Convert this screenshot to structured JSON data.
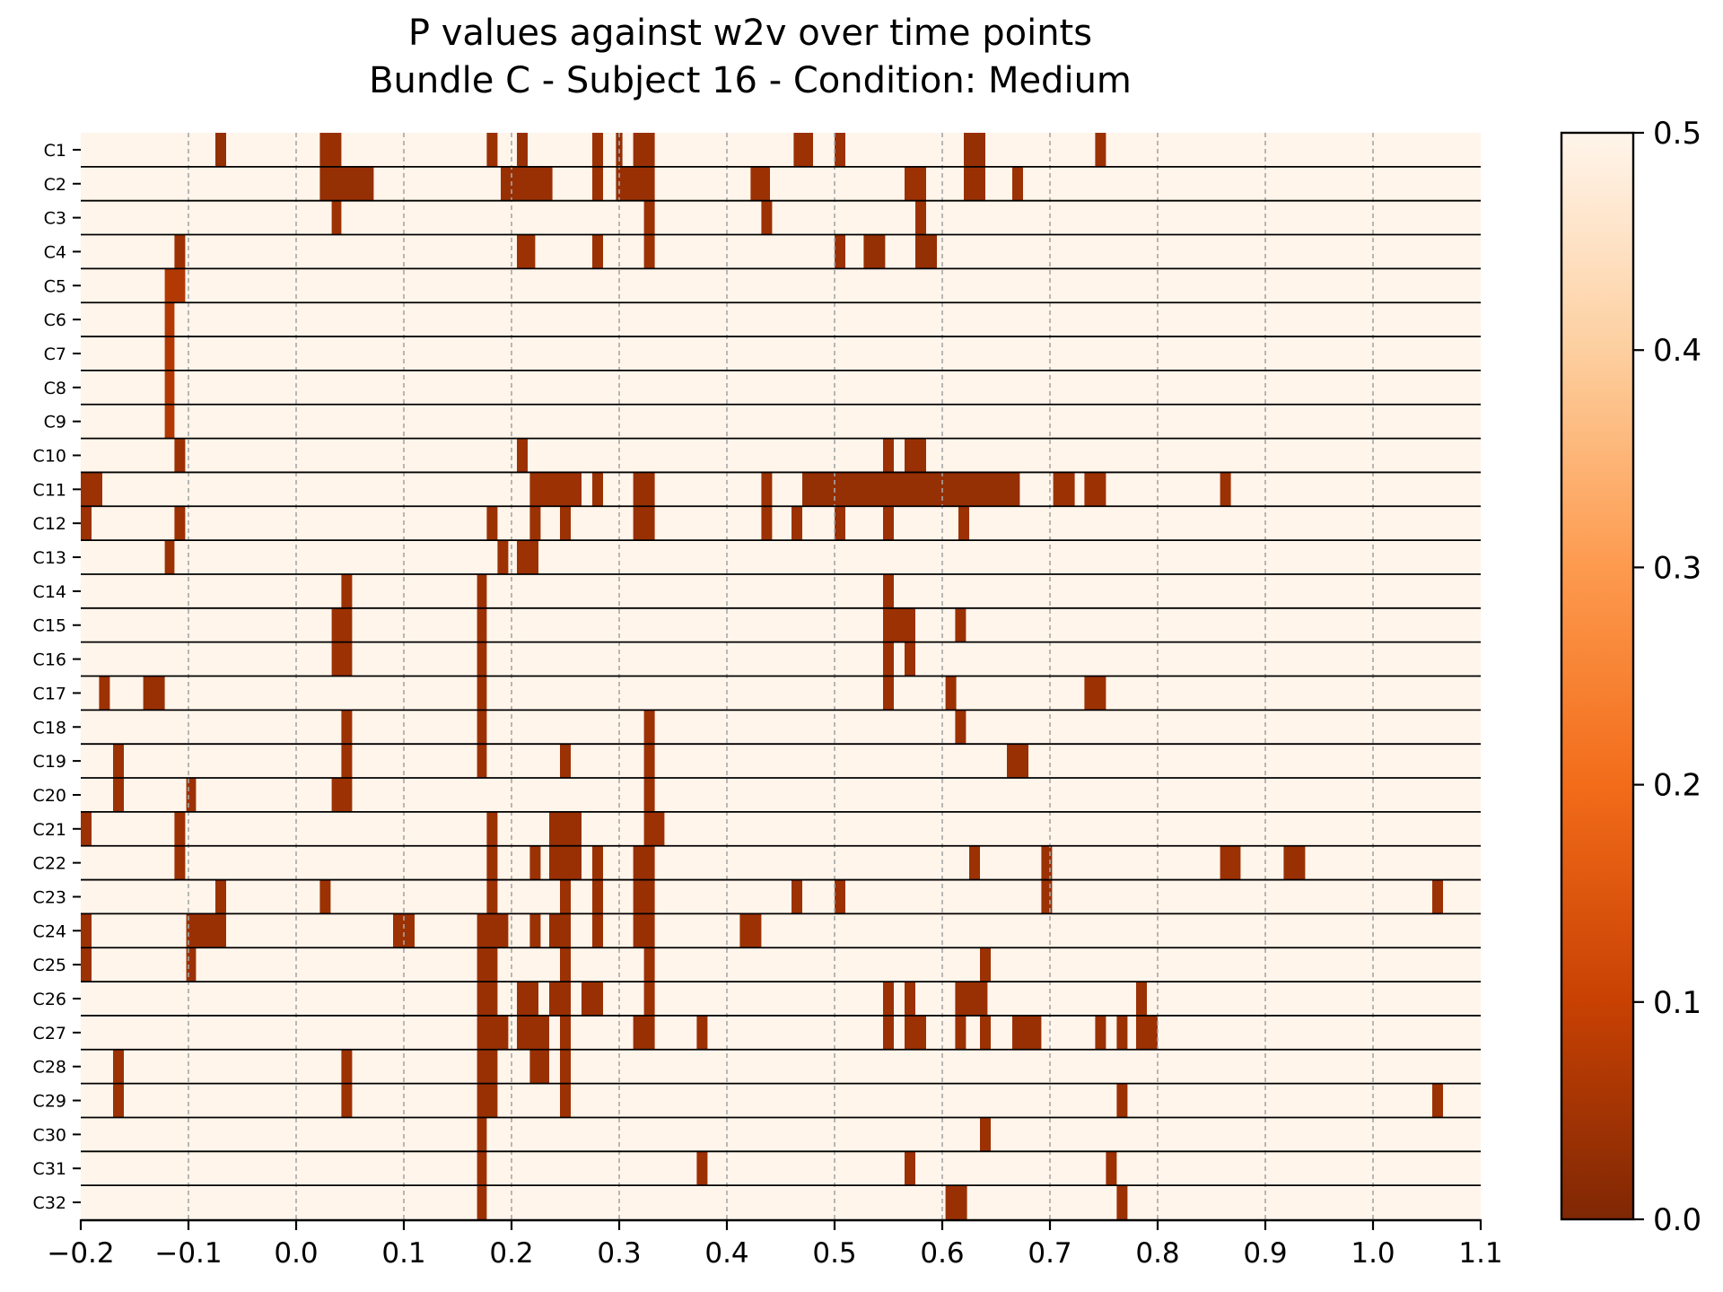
{
  "chart_data": {
    "type": "heatmap",
    "title_lines": [
      "P values against w2v over time points",
      "Bundle C - Subject 16 - Condition: Medium"
    ],
    "xlim": [
      -0.2,
      1.1
    ],
    "xticks": [
      -0.2,
      -0.1,
      0.0,
      0.1,
      0.2,
      0.3,
      0.4,
      0.5,
      0.6,
      0.7,
      0.8,
      0.9,
      1.0,
      1.1
    ],
    "xtick_labels": [
      "−0.2",
      "−0.1",
      "0.0",
      "0.1",
      "0.2",
      "0.3",
      "0.4",
      "0.5",
      "0.6",
      "0.7",
      "0.8",
      "0.9",
      "1.0",
      "1.1"
    ],
    "rows": [
      "C1",
      "C2",
      "C3",
      "C4",
      "C5",
      "C6",
      "C7",
      "C8",
      "C9",
      "C10",
      "C11",
      "C12",
      "C13",
      "C14",
      "C15",
      "C16",
      "C17",
      "C18",
      "C19",
      "C20",
      "C21",
      "C22",
      "C23",
      "C24",
      "C25",
      "C26",
      "C27",
      "C28",
      "C29",
      "C30",
      "C31",
      "C32"
    ],
    "background_p": 0.5,
    "grid": "vertical dashed at x ticks",
    "colormap": "Oranges reversed",
    "colorbar": {
      "range": [
        0.0,
        0.5
      ],
      "ticks": [
        0.0,
        0.1,
        0.2,
        0.3,
        0.4,
        0.5
      ],
      "tick_labels": [
        "0.0",
        "0.1",
        "0.2",
        "0.3",
        "0.4",
        "0.5"
      ],
      "stops": [
        [
          "0.0",
          "#7f2704"
        ],
        [
          "0.1",
          "#c84103"
        ],
        [
          "0.2",
          "#f26c1a"
        ],
        [
          "0.3",
          "#fd9a4e"
        ],
        [
          "0.4",
          "#fdcf9f"
        ],
        [
          "0.5",
          "#fff5eb"
        ]
      ]
    },
    "significant_segments": {
      "C1": [
        [
          -0.075,
          -0.065,
          0.03
        ],
        [
          0.022,
          0.042,
          0.035
        ],
        [
          0.177,
          0.187,
          0.04
        ],
        [
          0.205,
          0.215,
          0.035
        ],
        [
          0.275,
          0.285,
          0.04
        ],
        [
          0.297,
          0.303,
          0.03
        ],
        [
          0.313,
          0.333,
          0.035
        ],
        [
          0.462,
          0.48,
          0.04
        ],
        [
          0.5,
          0.51,
          0.04
        ],
        [
          0.62,
          0.64,
          0.03
        ],
        [
          0.742,
          0.752,
          0.04
        ]
      ],
      "C2": [
        [
          0.022,
          0.072,
          0.03
        ],
        [
          0.19,
          0.238,
          0.035
        ],
        [
          0.275,
          0.285,
          0.04
        ],
        [
          0.297,
          0.333,
          0.035
        ],
        [
          0.422,
          0.44,
          0.04
        ],
        [
          0.565,
          0.585,
          0.04
        ],
        [
          0.62,
          0.64,
          0.035
        ],
        [
          0.665,
          0.675,
          0.04
        ]
      ],
      "C3": [
        [
          0.033,
          0.042,
          0.04
        ],
        [
          0.323,
          0.333,
          0.04
        ],
        [
          0.432,
          0.442,
          0.04
        ],
        [
          0.575,
          0.585,
          0.04
        ]
      ],
      "C4": [
        [
          -0.113,
          -0.103,
          0.04
        ],
        [
          0.205,
          0.222,
          0.04
        ],
        [
          0.275,
          0.285,
          0.04
        ],
        [
          0.323,
          0.333,
          0.04
        ],
        [
          0.5,
          0.51,
          0.04
        ],
        [
          0.527,
          0.547,
          0.03
        ],
        [
          0.575,
          0.595,
          0.03
        ]
      ],
      "C5": [
        [
          -0.122,
          -0.103,
          0.07
        ]
      ],
      "C6": [
        [
          -0.122,
          -0.113,
          0.07
        ]
      ],
      "C7": [
        [
          -0.122,
          -0.113,
          0.07
        ]
      ],
      "C8": [
        [
          -0.122,
          -0.113,
          0.07
        ]
      ],
      "C9": [
        [
          -0.122,
          -0.113,
          0.07
        ]
      ],
      "C10": [
        [
          -0.113,
          -0.103,
          0.04
        ],
        [
          0.205,
          0.215,
          0.04
        ],
        [
          0.545,
          0.555,
          0.04
        ],
        [
          0.565,
          0.585,
          0.035
        ]
      ],
      "C11": [
        [
          -0.2,
          -0.18,
          0.04
        ],
        [
          0.217,
          0.265,
          0.04
        ],
        [
          0.275,
          0.285,
          0.04
        ],
        [
          0.313,
          0.333,
          0.035
        ],
        [
          0.432,
          0.442,
          0.04
        ],
        [
          0.47,
          0.672,
          0.03
        ],
        [
          0.703,
          0.723,
          0.04
        ],
        [
          0.732,
          0.752,
          0.04
        ],
        [
          0.858,
          0.868,
          0.04
        ]
      ],
      "C12": [
        [
          -0.2,
          -0.19,
          0.04
        ],
        [
          -0.113,
          -0.103,
          0.04
        ],
        [
          0.177,
          0.187,
          0.04
        ],
        [
          0.217,
          0.227,
          0.04
        ],
        [
          0.245,
          0.255,
          0.04
        ],
        [
          0.313,
          0.333,
          0.035
        ],
        [
          0.432,
          0.442,
          0.04
        ],
        [
          0.46,
          0.47,
          0.04
        ],
        [
          0.5,
          0.51,
          0.04
        ],
        [
          0.545,
          0.555,
          0.04
        ],
        [
          0.615,
          0.625,
          0.04
        ]
      ],
      "C13": [
        [
          -0.122,
          -0.113,
          0.04
        ],
        [
          0.187,
          0.197,
          0.04
        ],
        [
          0.205,
          0.225,
          0.04
        ]
      ],
      "C14": [
        [
          0.042,
          0.052,
          0.04
        ],
        [
          0.168,
          0.177,
          0.04
        ],
        [
          0.545,
          0.555,
          0.04
        ]
      ],
      "C15": [
        [
          0.033,
          0.052,
          0.04
        ],
        [
          0.168,
          0.177,
          0.04
        ],
        [
          0.545,
          0.575,
          0.04
        ],
        [
          0.612,
          0.622,
          0.04
        ]
      ],
      "C16": [
        [
          0.033,
          0.052,
          0.04
        ],
        [
          0.168,
          0.177,
          0.04
        ],
        [
          0.545,
          0.555,
          0.04
        ],
        [
          0.565,
          0.575,
          0.04
        ]
      ],
      "C17": [
        [
          -0.183,
          -0.173,
          0.04
        ],
        [
          -0.142,
          -0.122,
          0.035
        ],
        [
          0.168,
          0.177,
          0.04
        ],
        [
          0.545,
          0.555,
          0.04
        ],
        [
          0.603,
          0.613,
          0.04
        ],
        [
          0.732,
          0.752,
          0.04
        ]
      ],
      "C18": [
        [
          0.042,
          0.052,
          0.04
        ],
        [
          0.168,
          0.177,
          0.04
        ],
        [
          0.323,
          0.333,
          0.04
        ],
        [
          0.612,
          0.622,
          0.04
        ]
      ],
      "C19": [
        [
          -0.17,
          -0.16,
          0.04
        ],
        [
          0.042,
          0.052,
          0.04
        ],
        [
          0.168,
          0.177,
          0.04
        ],
        [
          0.245,
          0.255,
          0.04
        ],
        [
          0.323,
          0.333,
          0.04
        ],
        [
          0.66,
          0.68,
          0.035
        ]
      ],
      "C20": [
        [
          -0.17,
          -0.16,
          0.04
        ],
        [
          -0.102,
          -0.093,
          0.04
        ],
        [
          0.033,
          0.052,
          0.04
        ],
        [
          0.323,
          0.333,
          0.04
        ]
      ],
      "C21": [
        [
          -0.2,
          -0.19,
          0.04
        ],
        [
          -0.113,
          -0.103,
          0.04
        ],
        [
          0.177,
          0.187,
          0.04
        ],
        [
          0.235,
          0.265,
          0.035
        ],
        [
          0.323,
          0.342,
          0.04
        ]
      ],
      "C22": [
        [
          -0.113,
          -0.103,
          0.04
        ],
        [
          0.177,
          0.187,
          0.04
        ],
        [
          0.217,
          0.227,
          0.04
        ],
        [
          0.235,
          0.265,
          0.035
        ],
        [
          0.275,
          0.285,
          0.04
        ],
        [
          0.313,
          0.333,
          0.035
        ],
        [
          0.625,
          0.635,
          0.04
        ],
        [
          0.692,
          0.702,
          0.04
        ],
        [
          0.858,
          0.877,
          0.04
        ],
        [
          0.917,
          0.937,
          0.035
        ]
      ],
      "C23": [
        [
          -0.075,
          -0.065,
          0.04
        ],
        [
          0.022,
          0.032,
          0.04
        ],
        [
          0.177,
          0.187,
          0.04
        ],
        [
          0.245,
          0.255,
          0.04
        ],
        [
          0.275,
          0.285,
          0.04
        ],
        [
          0.313,
          0.333,
          0.035
        ],
        [
          0.46,
          0.47,
          0.04
        ],
        [
          0.5,
          0.51,
          0.04
        ],
        [
          0.692,
          0.702,
          0.04
        ],
        [
          1.055,
          1.065,
          0.04
        ]
      ],
      "C24": [
        [
          -0.2,
          -0.19,
          0.04
        ],
        [
          -0.102,
          -0.065,
          0.035
        ],
        [
          0.09,
          0.11,
          0.04
        ],
        [
          0.168,
          0.197,
          0.035
        ],
        [
          0.217,
          0.227,
          0.04
        ],
        [
          0.235,
          0.255,
          0.035
        ],
        [
          0.275,
          0.285,
          0.04
        ],
        [
          0.313,
          0.333,
          0.035
        ],
        [
          0.412,
          0.432,
          0.04
        ]
      ],
      "C25": [
        [
          -0.2,
          -0.19,
          0.04
        ],
        [
          -0.102,
          -0.093,
          0.04
        ],
        [
          0.168,
          0.187,
          0.035
        ],
        [
          0.245,
          0.255,
          0.04
        ],
        [
          0.323,
          0.333,
          0.04
        ],
        [
          0.635,
          0.645,
          0.04
        ]
      ],
      "C26": [
        [
          0.168,
          0.187,
          0.035
        ],
        [
          0.205,
          0.225,
          0.035
        ],
        [
          0.235,
          0.255,
          0.035
        ],
        [
          0.265,
          0.285,
          0.035
        ],
        [
          0.323,
          0.333,
          0.04
        ],
        [
          0.545,
          0.555,
          0.04
        ],
        [
          0.565,
          0.575,
          0.04
        ],
        [
          0.612,
          0.642,
          0.035
        ],
        [
          0.78,
          0.79,
          0.04
        ]
      ],
      "C27": [
        [
          0.168,
          0.197,
          0.035
        ],
        [
          0.205,
          0.235,
          0.035
        ],
        [
          0.245,
          0.255,
          0.04
        ],
        [
          0.313,
          0.333,
          0.035
        ],
        [
          0.372,
          0.382,
          0.04
        ],
        [
          0.545,
          0.555,
          0.04
        ],
        [
          0.565,
          0.585,
          0.04
        ],
        [
          0.612,
          0.622,
          0.04
        ],
        [
          0.635,
          0.645,
          0.04
        ],
        [
          0.665,
          0.692,
          0.035
        ],
        [
          0.742,
          0.752,
          0.04
        ],
        [
          0.762,
          0.772,
          0.04
        ],
        [
          0.78,
          0.8,
          0.04
        ]
      ],
      "C28": [
        [
          -0.17,
          -0.16,
          0.04
        ],
        [
          0.042,
          0.052,
          0.04
        ],
        [
          0.168,
          0.187,
          0.035
        ],
        [
          0.217,
          0.235,
          0.035
        ],
        [
          0.245,
          0.255,
          0.04
        ]
      ],
      "C29": [
        [
          -0.17,
          -0.16,
          0.04
        ],
        [
          0.042,
          0.052,
          0.04
        ],
        [
          0.168,
          0.187,
          0.035
        ],
        [
          0.245,
          0.255,
          0.04
        ],
        [
          0.762,
          0.772,
          0.04
        ],
        [
          1.055,
          1.065,
          0.04
        ]
      ],
      "C30": [
        [
          0.168,
          0.177,
          0.04
        ],
        [
          0.635,
          0.645,
          0.04
        ]
      ],
      "C31": [
        [
          0.168,
          0.177,
          0.04
        ],
        [
          0.372,
          0.382,
          0.04
        ],
        [
          0.565,
          0.575,
          0.04
        ],
        [
          0.752,
          0.762,
          0.04
        ]
      ],
      "C32": [
        [
          0.168,
          0.177,
          0.04
        ],
        [
          0.603,
          0.623,
          0.035
        ],
        [
          0.762,
          0.772,
          0.04
        ]
      ]
    }
  }
}
